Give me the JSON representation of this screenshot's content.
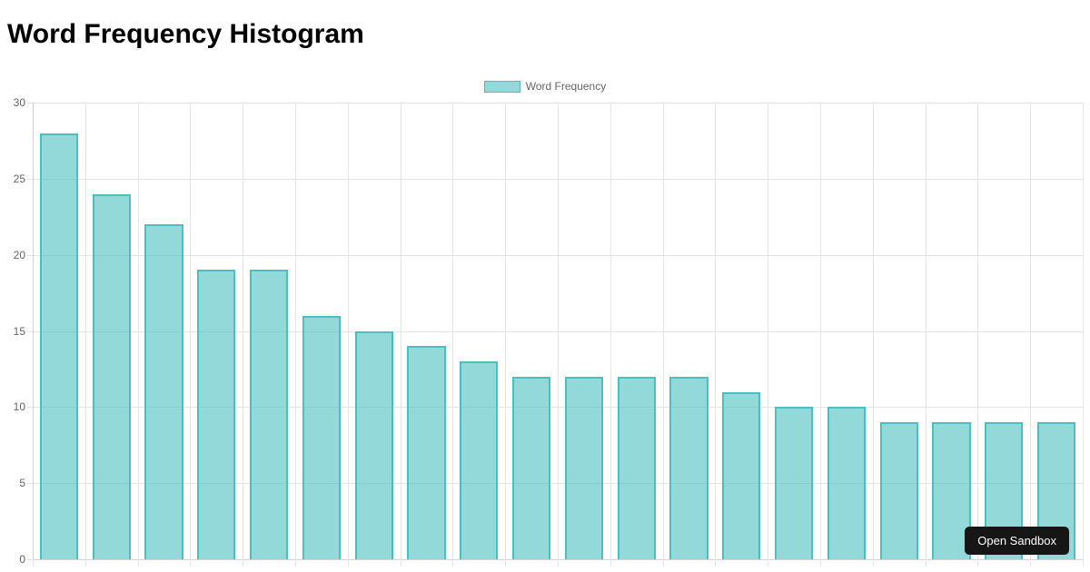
{
  "page": {
    "title": "Word Frequency Histogram"
  },
  "legend": {
    "position": "top-center",
    "items": [
      {
        "label": "Word Frequency"
      }
    ]
  },
  "sandbox_button": {
    "label": "Open Sandbox"
  },
  "colors": {
    "background": "#ffffff",
    "title_text": "#000000",
    "legend_text": "#666666",
    "tick_text": "#666666",
    "grid_line": "#e6e6e6",
    "axis_line": "#d2d2d2",
    "bar_fill": "rgba(75, 192, 192, 0.6)",
    "bar_border": "#4bc0c0",
    "button_bg": "#161616",
    "button_text": "#ffffff"
  },
  "chart_data": {
    "type": "bar",
    "title": "Word Frequency Histogram",
    "series": [
      {
        "name": "Word Frequency",
        "values": [
          28,
          24,
          22,
          19,
          19,
          16,
          15,
          14,
          13,
          12,
          12,
          12,
          12,
          11,
          10,
          10,
          9,
          9,
          9,
          9
        ]
      }
    ],
    "bar_count": 20,
    "y_ticks": [
      0,
      5,
      10,
      15,
      20,
      25,
      30
    ],
    "ylim": [
      0,
      30
    ],
    "xlabel": "",
    "ylabel": "",
    "grid": true,
    "legend_position": "top",
    "x_tick_labels_visible": false
  }
}
